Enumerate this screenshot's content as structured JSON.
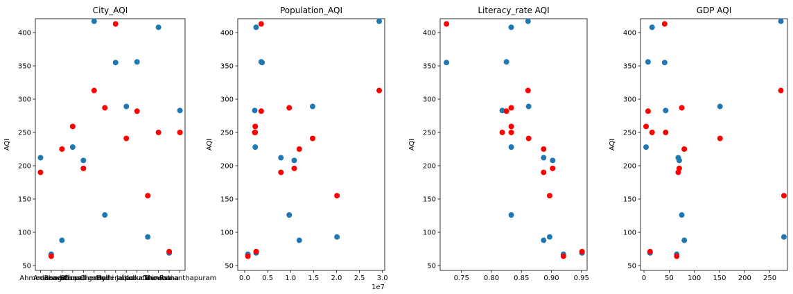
{
  "colors": {
    "blue": "#1f77b4",
    "red": "#ff0000"
  },
  "chart_data": [
    {
      "type": "scatter",
      "title": "City_AQI",
      "xlabel": "",
      "ylabel": "AQI",
      "x_kind": "category",
      "categories": [
        "Ahmedabad",
        "Amaravati",
        "Bengaluru",
        "Bhopal",
        "Chandigarh",
        "Chennai",
        "Delhi",
        "Hyderabad",
        "Jaipur",
        "Kolkata",
        "Lucknow",
        "Mumbai",
        "Patna",
        "Thiruvananthapuram"
      ],
      "ylim": [
        50,
        432
      ],
      "yticks": [
        50,
        100,
        150,
        200,
        250,
        300,
        350,
        400
      ],
      "grid": false,
      "series": [
        {
          "color": "#1f77b4",
          "points": [
            [
              0,
              212
            ],
            [
              1,
              67
            ],
            [
              2,
              88
            ],
            [
              3,
              228
            ],
            [
              4,
              208
            ],
            [
              5,
              417
            ],
            [
              6,
              126
            ],
            [
              7,
              355
            ],
            [
              8,
              289
            ],
            [
              9,
              356
            ],
            [
              10,
              93
            ],
            [
              11,
              408
            ],
            [
              12,
              69
            ],
            [
              13,
              283
            ]
          ]
        },
        {
          "color": "#ff0000",
          "points": [
            [
              0,
              190
            ],
            [
              1,
              64
            ],
            [
              2,
              225
            ],
            [
              3,
              259
            ],
            [
              4,
              196
            ],
            [
              5,
              313
            ],
            [
              6,
              287
            ],
            [
              7,
              413
            ],
            [
              8,
              241
            ],
            [
              9,
              282
            ],
            [
              10,
              155
            ],
            [
              11,
              250
            ],
            [
              12,
              71
            ],
            [
              13,
              250
            ]
          ]
        }
      ]
    },
    {
      "type": "scatter",
      "title": "Population_AQI",
      "xlabel": "",
      "ylabel": "AQI",
      "x_kind": "linear",
      "xlim": [
        -0.15,
        3.05
      ],
      "xticks": [
        0.0,
        0.5,
        1.0,
        1.5,
        2.0,
        2.5,
        3.0
      ],
      "xtick_labels": [
        "0.0",
        "0.5",
        "1.0",
        "1.5",
        "2.0",
        "2.5",
        "3.0"
      ],
      "offset_text": "1e7",
      "ylim": [
        50,
        432
      ],
      "yticks": [
        50,
        100,
        150,
        200,
        250,
        300,
        350,
        400
      ],
      "grid": false,
      "series": [
        {
          "color": "#1f77b4",
          "points": [
            [
              0.79,
              212
            ],
            [
              0.07,
              67
            ],
            [
              1.19,
              88
            ],
            [
              0.23,
              228
            ],
            [
              1.08,
              208
            ],
            [
              2.93,
              417
            ],
            [
              0.97,
              126
            ],
            [
              0.38,
              355
            ],
            [
              1.48,
              289
            ],
            [
              0.36,
              356
            ],
            [
              2.01,
              93
            ],
            [
              0.25,
              408
            ],
            [
              0.25,
              69
            ],
            [
              0.22,
              283
            ]
          ]
        },
        {
          "color": "#ff0000",
          "points": [
            [
              0.79,
              190
            ],
            [
              0.07,
              64
            ],
            [
              1.19,
              225
            ],
            [
              0.23,
              259
            ],
            [
              1.08,
              196
            ],
            [
              2.93,
              313
            ],
            [
              0.97,
              287
            ],
            [
              0.36,
              413
            ],
            [
              1.48,
              241
            ],
            [
              0.36,
              282
            ],
            [
              2.01,
              155
            ],
            [
              0.23,
              250
            ],
            [
              0.25,
              71
            ],
            [
              0.22,
              250
            ]
          ]
        }
      ]
    },
    {
      "type": "scatter",
      "title": "Literacy_rate AQI",
      "xlabel": "",
      "ylabel": "AQI",
      "x_kind": "linear",
      "xlim": [
        0.7145,
        0.9595
      ],
      "xticks": [
        0.75,
        0.8,
        0.85,
        0.9,
        0.95
      ],
      "xtick_labels": [
        "0.75",
        "0.80",
        "0.85",
        "0.90",
        "0.95"
      ],
      "ylim": [
        50,
        432
      ],
      "yticks": [
        50,
        100,
        150,
        200,
        250,
        300,
        350,
        400
      ],
      "grid": false,
      "series": [
        {
          "color": "#1f77b4",
          "points": [
            [
              0.887,
              212
            ],
            [
              0.92,
              67
            ],
            [
              0.887,
              88
            ],
            [
              0.833,
              228
            ],
            [
              0.902,
              208
            ],
            [
              0.861,
              417
            ],
            [
              0.833,
              126
            ],
            [
              0.725,
              355
            ],
            [
              0.862,
              289
            ],
            [
              0.825,
              356
            ],
            [
              0.897,
              93
            ],
            [
              0.833,
              408
            ],
            [
              0.951,
              69
            ],
            [
              0.818,
              283
            ]
          ]
        },
        {
          "color": "#ff0000",
          "points": [
            [
              0.887,
              190
            ],
            [
              0.92,
              64
            ],
            [
              0.887,
              225
            ],
            [
              0.833,
              259
            ],
            [
              0.902,
              196
            ],
            [
              0.861,
              313
            ],
            [
              0.833,
              287
            ],
            [
              0.725,
              413
            ],
            [
              0.862,
              241
            ],
            [
              0.825,
              282
            ],
            [
              0.897,
              155
            ],
            [
              0.818,
              250
            ],
            [
              0.951,
              71
            ],
            [
              0.833,
              250
            ]
          ]
        }
      ]
    },
    {
      "type": "scatter",
      "title": "GDP AQI",
      "xlabel": "",
      "ylabel": "AQI",
      "x_kind": "linear",
      "xlim": [
        -7,
        285
      ],
      "xticks": [
        0,
        50,
        100,
        150,
        200,
        250
      ],
      "xtick_labels": [
        "0",
        "50",
        "100",
        "150",
        "200",
        "250"
      ],
      "ylim": [
        50,
        432
      ],
      "yticks": [
        50,
        100,
        150,
        200,
        250,
        300,
        350,
        400
      ],
      "grid": false,
      "series": [
        {
          "color": "#1f77b4",
          "points": [
            [
              68,
              212
            ],
            [
              65,
              67
            ],
            [
              80,
              88
            ],
            [
              4,
              228
            ],
            [
              70,
              208
            ],
            [
              272,
              417
            ],
            [
              75,
              126
            ],
            [
              41,
              355
            ],
            [
              151,
              289
            ],
            [
              8,
              356
            ],
            [
              278,
              93
            ],
            [
              16,
              408
            ],
            [
              12,
              69
            ],
            [
              43,
              283
            ]
          ]
        },
        {
          "color": "#ff0000",
          "points": [
            [
              68,
              190
            ],
            [
              65,
              64
            ],
            [
              80,
              225
            ],
            [
              4,
              259
            ],
            [
              70,
              196
            ],
            [
              272,
              313
            ],
            [
              75,
              287
            ],
            [
              41,
              413
            ],
            [
              151,
              241
            ],
            [
              8,
              282
            ],
            [
              278,
              155
            ],
            [
              43,
              250
            ],
            [
              12,
              71
            ],
            [
              16,
              250
            ]
          ]
        }
      ]
    }
  ]
}
